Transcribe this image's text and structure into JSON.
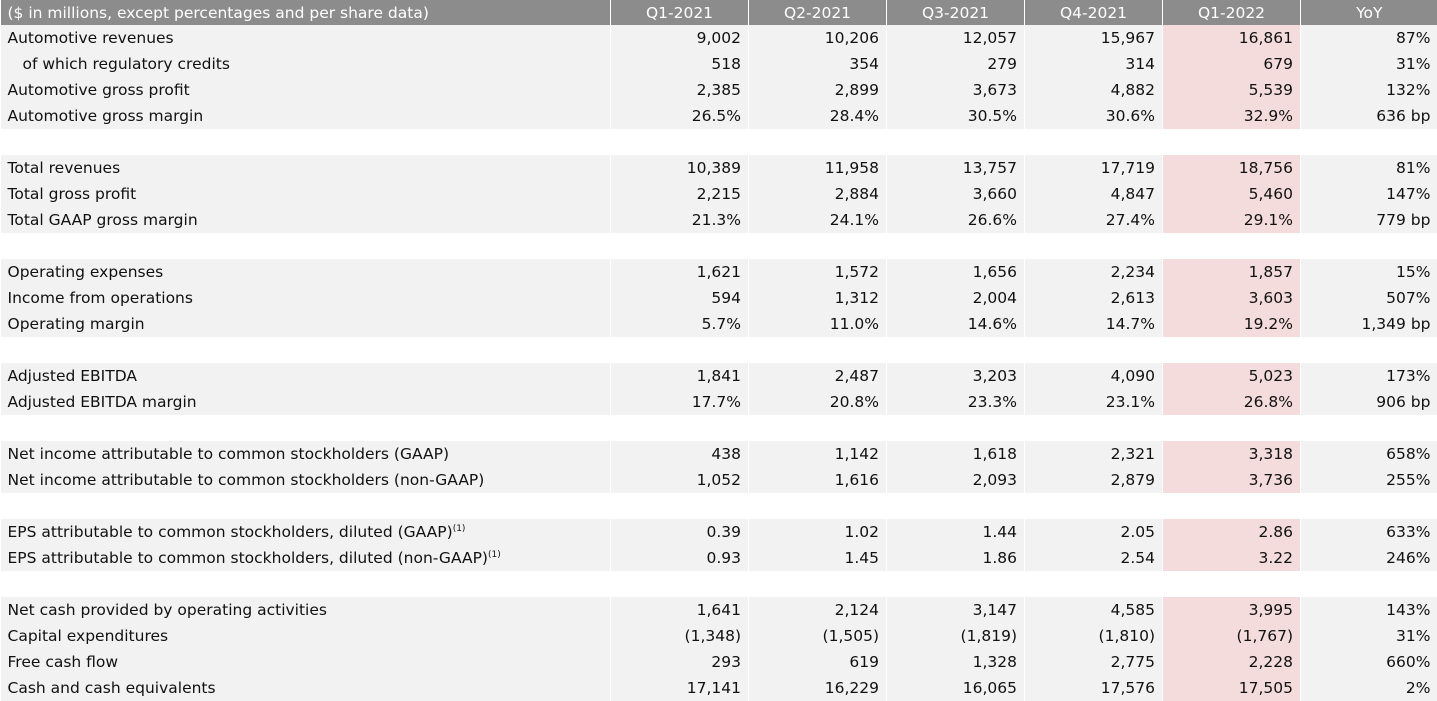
{
  "table": {
    "header": {
      "label": "($ in millions, except percentages and per share data)",
      "columns": [
        "Q1-2021",
        "Q2-2021",
        "Q3-2021",
        "Q4-2021",
        "Q1-2022",
        "YoY"
      ]
    },
    "highlight_color": "#f4dcdc",
    "header_color": "#8c8c8c",
    "row_color": "#f2f2f2",
    "groups": [
      [
        {
          "label": "Automotive revenues",
          "values": [
            "9,002",
            "10,206",
            "12,057",
            "15,967",
            "16,861",
            "87%"
          ]
        },
        {
          "label": "of which regulatory credits",
          "indent": true,
          "values": [
            "518",
            "354",
            "279",
            "314",
            "679",
            "31%"
          ]
        },
        {
          "label": "Automotive gross profit",
          "values": [
            "2,385",
            "2,899",
            "3,673",
            "4,882",
            "5,539",
            "132%"
          ]
        },
        {
          "label": "Automotive gross margin",
          "values": [
            "26.5%",
            "28.4%",
            "30.5%",
            "30.6%",
            "32.9%",
            "636 bp"
          ]
        }
      ],
      [
        {
          "label": "Total revenues",
          "values": [
            "10,389",
            "11,958",
            "13,757",
            "17,719",
            "18,756",
            "81%"
          ]
        },
        {
          "label": "Total gross profit",
          "values": [
            "2,215",
            "2,884",
            "3,660",
            "4,847",
            "5,460",
            "147%"
          ]
        },
        {
          "label": "Total GAAP gross margin",
          "values": [
            "21.3%",
            "24.1%",
            "26.6%",
            "27.4%",
            "29.1%",
            "779 bp"
          ]
        }
      ],
      [
        {
          "label": "Operating expenses",
          "values": [
            "1,621",
            "1,572",
            "1,656",
            "2,234",
            "1,857",
            "15%"
          ]
        },
        {
          "label": "Income from operations",
          "values": [
            "594",
            "1,312",
            "2,004",
            "2,613",
            "3,603",
            "507%"
          ]
        },
        {
          "label": "Operating margin",
          "values": [
            "5.7%",
            "11.0%",
            "14.6%",
            "14.7%",
            "19.2%",
            "1,349 bp"
          ]
        }
      ],
      [
        {
          "label": "Adjusted EBITDA",
          "values": [
            "1,841",
            "2,487",
            "3,203",
            "4,090",
            "5,023",
            "173%"
          ]
        },
        {
          "label": "Adjusted EBITDA margin",
          "values": [
            "17.7%",
            "20.8%",
            "23.3%",
            "23.1%",
            "26.8%",
            "906 bp"
          ]
        }
      ],
      [
        {
          "label": "Net income attributable to common stockholders (GAAP)",
          "values": [
            "438",
            "1,142",
            "1,618",
            "2,321",
            "3,318",
            "658%"
          ]
        },
        {
          "label": "Net income attributable to common stockholders (non-GAAP)",
          "values": [
            "1,052",
            "1,616",
            "2,093",
            "2,879",
            "3,736",
            "255%"
          ]
        }
      ],
      [
        {
          "label": "EPS attributable to common stockholders, diluted (GAAP)",
          "sup": "(1)",
          "values": [
            "0.39",
            "1.02",
            "1.44",
            "2.05",
            "2.86",
            "633%"
          ]
        },
        {
          "label": "EPS attributable to common stockholders, diluted (non-GAAP)",
          "sup": "(1)",
          "values": [
            "0.93",
            "1.45",
            "1.86",
            "2.54",
            "3.22",
            "246%"
          ]
        }
      ],
      [
        {
          "label": "Net cash provided by operating activities",
          "values": [
            "1,641",
            "2,124",
            "3,147",
            "4,585",
            "3,995",
            "143%"
          ]
        },
        {
          "label": "Capital expenditures",
          "values": [
            "(1,348)",
            "(1,505)",
            "(1,819)",
            "(1,810)",
            "(1,767)",
            "31%"
          ]
        },
        {
          "label": "Free cash flow",
          "values": [
            "293",
            "619",
            "1,328",
            "2,775",
            "2,228",
            "660%"
          ]
        },
        {
          "label": "Cash and cash equivalents",
          "values": [
            "17,141",
            "16,229",
            "16,065",
            "17,576",
            "17,505",
            "2%"
          ]
        }
      ]
    ]
  }
}
